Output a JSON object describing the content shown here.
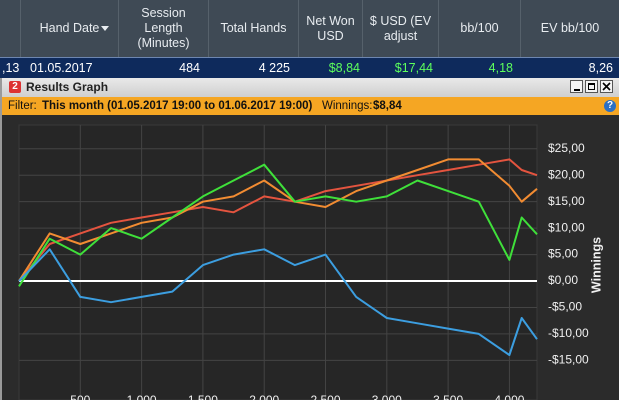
{
  "table": {
    "columns": [
      "Hand Date",
      "Session Length (Minutes)",
      "Total Hands",
      "Net Won USD",
      "$ USD (EV adjust",
      "bb/100",
      "EV bb/100"
    ],
    "rows": [
      [
        ",13",
        "01.05.2017",
        "484",
        "4 225",
        "$8,84",
        "$17,44",
        "4,18",
        "8,26"
      ]
    ]
  },
  "window": {
    "icon": "2",
    "title": "Results Graph",
    "help_icon": "?"
  },
  "filter": {
    "label": "Filter:",
    "range": "This month (01.05.2017 19:00 to 01.06.2017 19:00)",
    "winnings_label": "Winnings:",
    "winnings": "$8,84"
  },
  "chart_data": {
    "type": "line",
    "y_label": "Winnings",
    "x": [
      0,
      250,
      500,
      750,
      1000,
      1250,
      1500,
      1750,
      2000,
      2250,
      2500,
      2750,
      3000,
      3250,
      3500,
      3750,
      4000,
      4100,
      4225
    ],
    "series": [
      {
        "color": "#e4543f",
        "values": [
          0,
          7,
          9,
          11,
          12,
          13,
          14,
          13,
          16,
          15,
          17,
          18,
          19,
          20,
          21,
          22,
          23,
          21,
          20
        ]
      },
      {
        "color": "#f28c32",
        "values": [
          0,
          9,
          7,
          9,
          11,
          12,
          15,
          16,
          19,
          15,
          14,
          17,
          19,
          21,
          23,
          23,
          18,
          15,
          17.44
        ]
      },
      {
        "color": "#3fe03a",
        "values": [
          -1,
          8,
          5,
          10,
          8,
          12,
          16,
          19,
          22,
          15,
          16,
          15,
          16,
          19,
          17,
          15,
          4,
          12,
          8.84
        ]
      },
      {
        "color": "#3c9ee0",
        "values": [
          0,
          6,
          -3,
          -4,
          -3,
          -2,
          3,
          5,
          6,
          3,
          5,
          -3,
          -7,
          -8,
          -9,
          -10,
          -14,
          -7,
          -11
        ]
      }
    ],
    "xlim": [
      0,
      4225
    ],
    "ylim": [
      -22.5,
      29.5
    ],
    "xticks": [
      500,
      {
        "value": 1000,
        "label": "1 000"
      },
      {
        "value": 1500,
        "label": "1 500"
      },
      {
        "value": 2000,
        "label": "2 000"
      },
      {
        "value": 2500,
        "label": "2 500"
      },
      {
        "value": 3000,
        "label": "3 000"
      },
      {
        "value": 3500,
        "label": "3 500"
      },
      {
        "value": 4000,
        "label": "4 000"
      }
    ],
    "yticks": [
      {
        "value": -15,
        "label": "-$15,00"
      },
      {
        "value": -10,
        "label": "-$10,00"
      },
      {
        "value": -5,
        "label": "-$5,00"
      },
      {
        "value": 0,
        "label": "$0,00"
      },
      {
        "value": 5,
        "label": "$5,00"
      },
      {
        "value": 10,
        "label": "$10,00"
      },
      {
        "value": 15,
        "label": "$15,00"
      },
      {
        "value": 20,
        "label": "$20,00"
      },
      {
        "value": 25,
        "label": "$25,00"
      }
    ],
    "grid": true
  }
}
